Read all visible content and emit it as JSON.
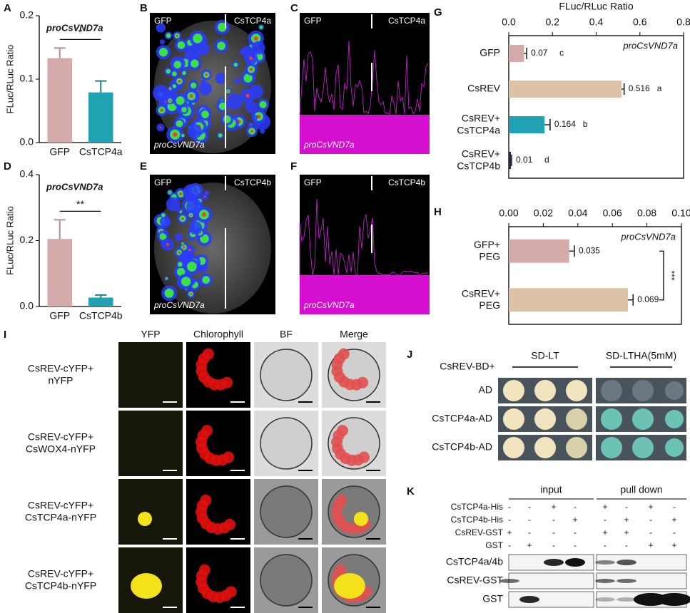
{
  "chart_data": [
    {
      "type": "bar",
      "orientation": "vertical",
      "panel_label": "A",
      "ylabel": "FLuc/RLuc Ratio",
      "annotation": "proCsVND7a",
      "categories": [
        "GFP",
        "CsTCP4a"
      ],
      "values": [
        0.133,
        0.079
      ],
      "errors": [
        0.016,
        0.018
      ],
      "colors": [
        "#d5aaaa",
        "#1fa2b2"
      ],
      "ylim": [
        0,
        0.2
      ],
      "yticks": [
        {
          "value": 0,
          "label": "0.0"
        },
        0.1,
        0.2
      ],
      "significance": "*"
    },
    {
      "type": "bar",
      "orientation": "vertical",
      "panel_label": "D",
      "ylabel": "FLuc/RLuc Ratio",
      "annotation": "proCsVND7a",
      "categories": [
        "GFP",
        "CsTCP4b"
      ],
      "values": [
        0.205,
        0.027
      ],
      "errors": [
        0.058,
        0.008
      ],
      "colors": [
        "#d5aaaa",
        "#1fa2b2"
      ],
      "ylim": [
        0,
        0.4
      ],
      "yticks": [
        {
          "value": 0,
          "label": "0.0"
        },
        0.2,
        0.4
      ],
      "significance": "**"
    },
    {
      "type": "bar",
      "orientation": "horizontal",
      "panel_label": "G",
      "xlabel": "FLuc/RLuc Ratio",
      "annotation": "proCsVND7a",
      "categories": [
        "GFP",
        "CsREV",
        "CsREV+\nCsTCP4a",
        "CsREV+\nCsTCP4b"
      ],
      "values": [
        0.07,
        0.516,
        0.164,
        0.01
      ],
      "errors": [
        0.012,
        0.012,
        0.025,
        0.003
      ],
      "letters": [
        "c",
        "a",
        "b",
        "d"
      ],
      "colors": [
        "#d5aaaa",
        "#dcc2a6",
        "#1fa2b2",
        "#1f2a5a"
      ],
      "xlim": [
        0,
        0.8
      ],
      "xticks": [
        {
          "value": 0,
          "label": "0.0"
        },
        0.2,
        0.4,
        0.6,
        0.8
      ]
    },
    {
      "type": "bar",
      "orientation": "horizontal",
      "panel_label": "H",
      "annotation": "proCsVND7a",
      "categories": [
        "GFP+\nPEG",
        "CsREV+\nPEG"
      ],
      "values": [
        0.035,
        0.069
      ],
      "errors": [
        0.003,
        0.003
      ],
      "colors": [
        "#d5aaaa",
        "#dcc2a6"
      ],
      "xlim": [
        0,
        0.1
      ],
      "xticks": [
        {
          "value": 0,
          "label": "0.00"
        },
        {
          "value": 0.02,
          "label": "0.02"
        },
        {
          "value": 0.04,
          "label": "0.04"
        },
        {
          "value": 0.06,
          "label": "0.06"
        },
        {
          "value": 0.08,
          "label": "0.08"
        },
        {
          "value": 0.1,
          "label": "0.10"
        }
      ],
      "significance": "***"
    }
  ],
  "panels": {
    "B": {
      "label": "B",
      "left": "GFP",
      "right": "CsTCP4a",
      "promoter": "proCsVND7a"
    },
    "C": {
      "label": "C",
      "left": "GFP",
      "right": "CsTCP4a",
      "promoter": "proCsVND7a"
    },
    "E": {
      "label": "E",
      "left": "GFP",
      "right": "CsTCP4b",
      "promoter": "proCsVND7a"
    },
    "F": {
      "label": "F",
      "left": "GFP",
      "right": "CsTCP4b",
      "promoter": "proCsVND7a"
    },
    "I": {
      "label": "I",
      "columns": [
        "YFP",
        "Chlorophyll",
        "BF",
        "Merge"
      ],
      "rows": [
        "CsREV-cYFP+\nnYFP",
        "CsREV-cYFP+\nCsWOX4-nYFP",
        "CsREV-cYFP+\nCsTCP4a-nYFP",
        "CsREV-cYFP+\nCsTCP4b-nYFP"
      ]
    },
    "J": {
      "label": "J",
      "header": "CsREV-BD+",
      "columns": [
        "SD-LT",
        "SD-LTHA(5mM)"
      ],
      "rows": [
        "AD",
        "CsTCP4a-AD",
        "CsTCP4b-AD"
      ]
    },
    "K": {
      "label": "K",
      "groups": [
        "input",
        "pull down"
      ],
      "rows": [
        {
          "name": "CsTCP4a-His",
          "signs": [
            "-",
            "-",
            "+",
            "-",
            "+",
            "-",
            "+",
            "-"
          ]
        },
        {
          "name": "CsTCP4b-His",
          "signs": [
            "-",
            "-",
            "-",
            "+",
            "-",
            "+",
            "-",
            "+"
          ]
        },
        {
          "name": "CsREV-GST",
          "signs": [
            "+",
            "-",
            "-",
            "-",
            "+",
            "+",
            "-",
            "-"
          ]
        },
        {
          "name": "GST",
          "signs": [
            "-",
            "+",
            "-",
            "-",
            "-",
            "-",
            "+",
            "+"
          ]
        }
      ],
      "blots": [
        "CsTCP4a/4b",
        "CsREV-GST",
        "GST"
      ]
    }
  }
}
